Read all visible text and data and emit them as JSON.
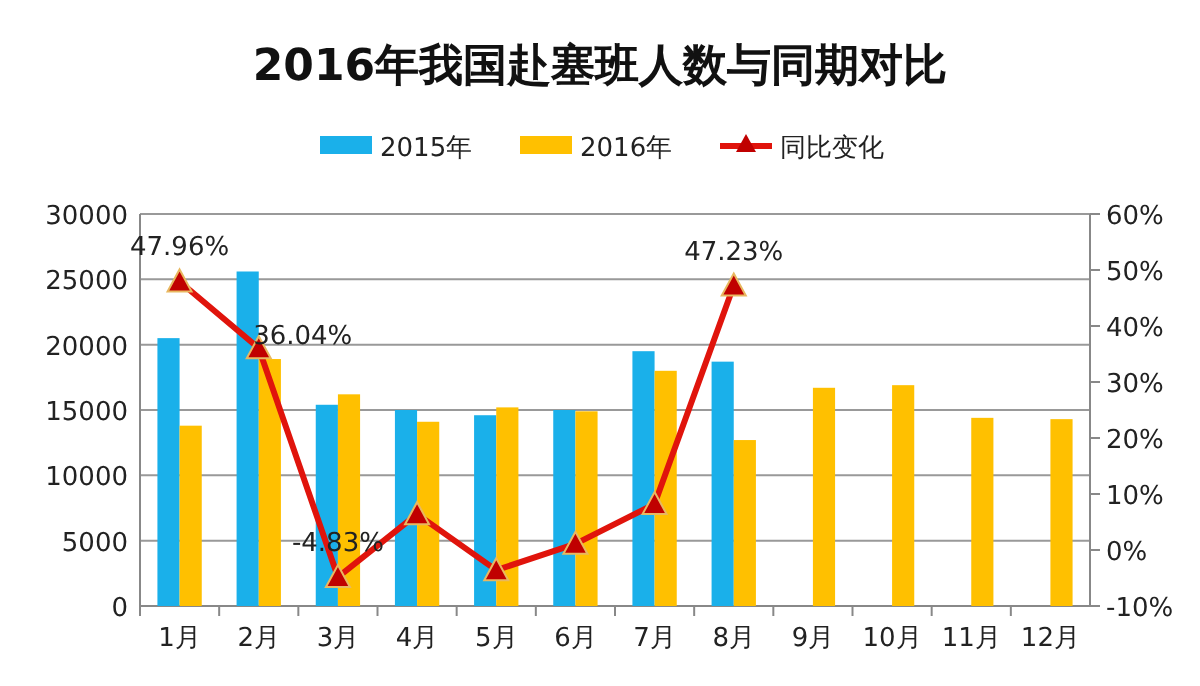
{
  "chart_data": {
    "type": "bar",
    "title": "2016年我国赴塞班人数与同期对比",
    "categories": [
      "1月",
      "2月",
      "3月",
      "4月",
      "5月",
      "6月",
      "7月",
      "8月",
      "9月",
      "10月",
      "11月",
      "12月"
    ],
    "series": [
      {
        "name": "2015年",
        "color": "#1ab0ea",
        "values": [
          20500,
          25600,
          15400,
          15000,
          14600,
          15000,
          19500,
          18700,
          null,
          null,
          null,
          null
        ]
      },
      {
        "name": "2016年",
        "color": "#ffc000",
        "values": [
          13800,
          18900,
          16200,
          14100,
          15200,
          14900,
          18000,
          12700,
          16700,
          16900,
          14400,
          14300
        ]
      },
      {
        "name": "同比变化",
        "type": "line",
        "axis": "y2",
        "color": "#e0140c",
        "marker": "triangle",
        "values": [
          47.96,
          36.04,
          -4.83,
          6.4,
          -3.6,
          1.1,
          8.2,
          47.23,
          null,
          null,
          null,
          null
        ],
        "value_labels": [
          "47.96%",
          "36.04%",
          "-4.83%",
          null,
          null,
          null,
          null,
          "47.23%",
          null,
          null,
          null,
          null
        ]
      }
    ],
    "ylim": [
      0,
      30000
    ],
    "yticks": [
      0,
      5000,
      10000,
      15000,
      20000,
      25000,
      30000
    ],
    "y2lim": [
      -10,
      60
    ],
    "y2ticks": [
      {
        "value": -10,
        "label": "-10%"
      },
      {
        "value": 0,
        "label": "0%"
      },
      {
        "value": 10,
        "label": "10%"
      },
      {
        "value": 20,
        "label": "20%"
      },
      {
        "value": 30,
        "label": "30%"
      },
      {
        "value": 40,
        "label": "40%"
      },
      {
        "value": 50,
        "label": "50%"
      },
      {
        "value": 60,
        "label": "60%"
      }
    ],
    "grid": "y",
    "legend": "top"
  }
}
